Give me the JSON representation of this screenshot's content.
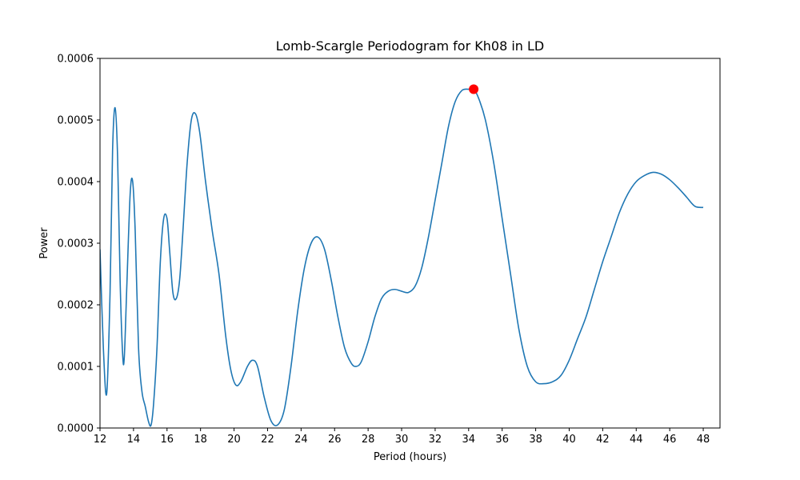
{
  "chart_data": {
    "type": "line",
    "title": "Lomb-Scargle Periodogram for Kh08 in LD",
    "xlabel": "Period (hours)",
    "ylabel": "Power",
    "xlim": [
      12,
      49
    ],
    "ylim": [
      0,
      0.0006
    ],
    "xticks": [
      12,
      14,
      16,
      18,
      20,
      22,
      24,
      26,
      28,
      30,
      32,
      34,
      36,
      38,
      40,
      42,
      44,
      46,
      48
    ],
    "xtick_labels": [
      "12",
      "14",
      "16",
      "18",
      "20",
      "22",
      "24",
      "26",
      "28",
      "30",
      "32",
      "34",
      "36",
      "38",
      "40",
      "42",
      "44",
      "46",
      "48"
    ],
    "yticks": [
      0,
      0.0001,
      0.0002,
      0.0003,
      0.0004,
      0.0005,
      0.0006
    ],
    "ytick_labels": [
      "0.0000",
      "0.0001",
      "0.0002",
      "0.0003",
      "0.0004",
      "0.0005",
      "0.0006"
    ],
    "grid": false,
    "line_color": "#1f77b4",
    "peak_color": "#ff0000",
    "series": [
      {
        "x": [
          12.0,
          12.2,
          12.4,
          12.6,
          12.75,
          12.9,
          13.05,
          13.2,
          13.35,
          13.45,
          13.6,
          13.8,
          13.95,
          14.1,
          14.3,
          14.5,
          14.7,
          14.9,
          15.05,
          15.2,
          15.4,
          15.6,
          15.8,
          16.0,
          16.15,
          16.35,
          16.55,
          16.75,
          16.95,
          17.2,
          17.45,
          17.7,
          17.95,
          18.3,
          18.7,
          19.1,
          19.5,
          19.8,
          20.1,
          20.4,
          20.8,
          21.1,
          21.4,
          21.8,
          22.2,
          22.6,
          23.0,
          23.4,
          23.8,
          24.2,
          24.6,
          25.0,
          25.4,
          25.8,
          26.2,
          26.6,
          27.0,
          27.3,
          27.6,
          28.0,
          28.4,
          28.8,
          29.2,
          29.6,
          30.0,
          30.4,
          30.8,
          31.2,
          31.6,
          32.0,
          32.4,
          32.8,
          33.2,
          33.6,
          34.0,
          34.3,
          34.6,
          35.0,
          35.5,
          36.0,
          36.5,
          37.0,
          37.5,
          38.0,
          38.5,
          39.0,
          39.5,
          40.0,
          40.5,
          41.0,
          41.5,
          42.0,
          42.5,
          43.0,
          43.5,
          44.0,
          44.5,
          45.0,
          45.5,
          46.0,
          46.5,
          47.0,
          47.5,
          48.0
        ],
        "y": [
          0.00029,
          0.00013,
          5.6e-05,
          0.00022,
          0.00045,
          0.00052,
          0.00044,
          0.00024,
          0.00012,
          0.000115,
          0.00023,
          0.00038,
          0.0004,
          0.00032,
          0.00013,
          6e-05,
          3.5e-05,
          1e-05,
          5e-06,
          4e-05,
          0.00013,
          0.00027,
          0.00034,
          0.00034,
          0.00029,
          0.00022,
          0.00021,
          0.00024,
          0.00032,
          0.00043,
          0.0005,
          0.00051,
          0.00048,
          0.0004,
          0.00032,
          0.00025,
          0.00015,
          9.5e-05,
          7e-05,
          7.5e-05,
          0.0001,
          0.00011,
          0.0001,
          5e-05,
          1.2e-05,
          5e-06,
          3e-05,
          0.0001,
          0.00019,
          0.00026,
          0.0003,
          0.00031,
          0.00029,
          0.00024,
          0.00018,
          0.00013,
          0.000105,
          0.0001,
          0.000108,
          0.00014,
          0.00018,
          0.00021,
          0.000222,
          0.000225,
          0.000222,
          0.00022,
          0.00023,
          0.00026,
          0.00031,
          0.00037,
          0.00043,
          0.00049,
          0.00053,
          0.000548,
          0.00055,
          0.00055,
          0.000535,
          0.0005,
          0.00043,
          0.00034,
          0.00025,
          0.00016,
          0.0001,
          7.5e-05,
          7.2e-05,
          7.5e-05,
          8.5e-05,
          0.00011,
          0.000145,
          0.00018,
          0.000225,
          0.00027,
          0.00031,
          0.00035,
          0.00038,
          0.0004,
          0.00041,
          0.000415,
          0.000412,
          0.000403,
          0.00039,
          0.000375,
          0.00036,
          0.000358
        ]
      }
    ],
    "peak": {
      "x": 34.3,
      "y": 0.00055
    }
  }
}
